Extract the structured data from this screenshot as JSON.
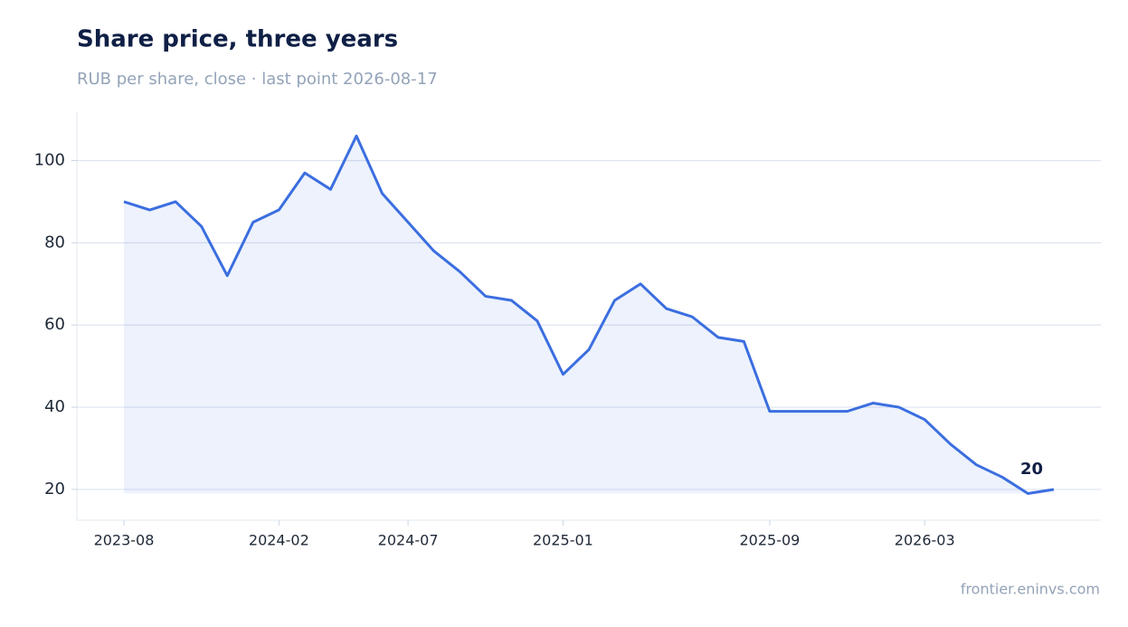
{
  "chart_data": {
    "type": "line",
    "title": "Share price, three years",
    "subtitle": "RUB per share, close · last point 2026-08-17",
    "source": "frontier.eninvs.com",
    "x": [
      "2023-08",
      "2023-09",
      "2023-10",
      "2023-11",
      "2023-12",
      "2024-01",
      "2024-02",
      "2024-03",
      "2024-04",
      "2024-05",
      "2024-06",
      "2024-07",
      "2024-08",
      "2024-09",
      "2024-10",
      "2024-11",
      "2024-12",
      "2025-01",
      "2025-02",
      "2025-03",
      "2025-04",
      "2025-05",
      "2025-06",
      "2025-07",
      "2025-08",
      "2025-09",
      "2025-10",
      "2025-11",
      "2025-12",
      "2026-01",
      "2026-02",
      "2026-03",
      "2026-04",
      "2026-05",
      "2026-06",
      "2026-07",
      "2026-08"
    ],
    "series": [
      {
        "name": "Close",
        "color": "#3b6ee0",
        "values": [
          90,
          88,
          90,
          84,
          72,
          85,
          88,
          97,
          93,
          106,
          92,
          85,
          78,
          73,
          67,
          66,
          61,
          48,
          54,
          66,
          70,
          64,
          62,
          57,
          56,
          39,
          39,
          39,
          39,
          41,
          40,
          37,
          31,
          26,
          23,
          19,
          20
        ],
        "value_labels": [
          null,
          null,
          null,
          null,
          null,
          null,
          null,
          null,
          null,
          null,
          null,
          null,
          null,
          null,
          null,
          null,
          null,
          null,
          null,
          null,
          null,
          null,
          null,
          null,
          null,
          null,
          null,
          null,
          null,
          null,
          null,
          null,
          null,
          null,
          null,
          null,
          "20"
        ]
      }
    ],
    "xticks": [
      "2023-08",
      "2024-02",
      "2024-07",
      "2025-01",
      "2025-09",
      "2026-03"
    ],
    "ylim": [
      12.5,
      112
    ],
    "yticks": [
      20,
      40,
      60,
      80,
      100
    ],
    "grid": true
  }
}
